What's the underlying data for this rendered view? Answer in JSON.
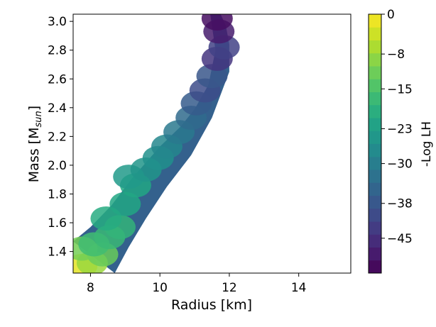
{
  "chart_data": {
    "type": "heatmap",
    "title": "",
    "xlabel": "Radius [km]",
    "ylabel_main": "Mass [M",
    "ylabel_sub": "sun",
    "ylabel_close": "]",
    "xlim": [
      7.5,
      15.5
    ],
    "ylim": [
      1.25,
      3.05
    ],
    "x_ticks": [
      8,
      10,
      12,
      14
    ],
    "y_ticks": [
      1.4,
      1.6,
      1.8,
      2.0,
      2.2,
      2.4,
      2.6,
      2.8,
      3.0
    ],
    "grid": false,
    "colorbar": {
      "label": "-Log LH",
      "range": [
        -52,
        0
      ],
      "ticks": [
        0,
        -8,
        -15,
        -23,
        -30,
        -38,
        -45
      ],
      "tick_labels": [
        "0",
        "−8",
        "−15",
        "−23",
        "−30",
        "−38",
        "−45"
      ],
      "colormap": "viridis"
    },
    "band": {
      "left_edge": [
        [
          7.5,
          1.47
        ],
        [
          8.0,
          1.57
        ],
        [
          8.6,
          1.72
        ],
        [
          9.2,
          1.91
        ],
        [
          10.0,
          2.13
        ],
        [
          10.6,
          2.27
        ],
        [
          11.0,
          2.39
        ],
        [
          11.4,
          2.56
        ],
        [
          11.6,
          2.8
        ],
        [
          11.45,
          3.05
        ]
      ],
      "right_edge": [
        [
          8.7,
          1.25
        ],
        [
          9.1,
          1.43
        ],
        [
          9.6,
          1.63
        ],
        [
          10.2,
          1.85
        ],
        [
          10.9,
          2.07
        ],
        [
          11.5,
          2.33
        ],
        [
          12.0,
          2.65
        ],
        [
          12.0,
          2.84
        ],
        [
          11.9,
          2.97
        ],
        [
          11.75,
          3.05
        ]
      ]
    },
    "cells": [
      {
        "x": 7.75,
        "y": 1.3,
        "v": -2
      },
      {
        "x": 8.05,
        "y": 1.32,
        "v": -8
      },
      {
        "x": 8.35,
        "y": 1.38,
        "v": -12
      },
      {
        "x": 7.75,
        "y": 1.42,
        "v": -11
      },
      {
        "x": 8.1,
        "y": 1.45,
        "v": -16
      },
      {
        "x": 8.55,
        "y": 1.5,
        "v": -17
      },
      {
        "x": 8.85,
        "y": 1.57,
        "v": -18
      },
      {
        "x": 8.45,
        "y": 1.63,
        "v": -20
      },
      {
        "x": 9.0,
        "y": 1.73,
        "v": -21
      },
      {
        "x": 9.3,
        "y": 1.86,
        "v": -21
      },
      {
        "x": 9.1,
        "y": 1.92,
        "v": -24
      },
      {
        "x": 9.6,
        "y": 1.97,
        "v": -25
      },
      {
        "x": 9.95,
        "y": 2.05,
        "v": -26
      },
      {
        "x": 10.2,
        "y": 2.13,
        "v": -28
      },
      {
        "x": 10.55,
        "y": 2.23,
        "v": -31
      },
      {
        "x": 10.9,
        "y": 2.33,
        "v": -34
      },
      {
        "x": 11.05,
        "y": 2.43,
        "v": -37
      },
      {
        "x": 11.3,
        "y": 2.52,
        "v": -40
      },
      {
        "x": 11.5,
        "y": 2.62,
        "v": -38
      },
      {
        "x": 11.65,
        "y": 2.74,
        "v": -44
      },
      {
        "x": 11.85,
        "y": 2.82,
        "v": -42
      },
      {
        "x": 11.7,
        "y": 2.93,
        "v": -48
      },
      {
        "x": 11.65,
        "y": 3.02,
        "v": -50
      }
    ]
  }
}
